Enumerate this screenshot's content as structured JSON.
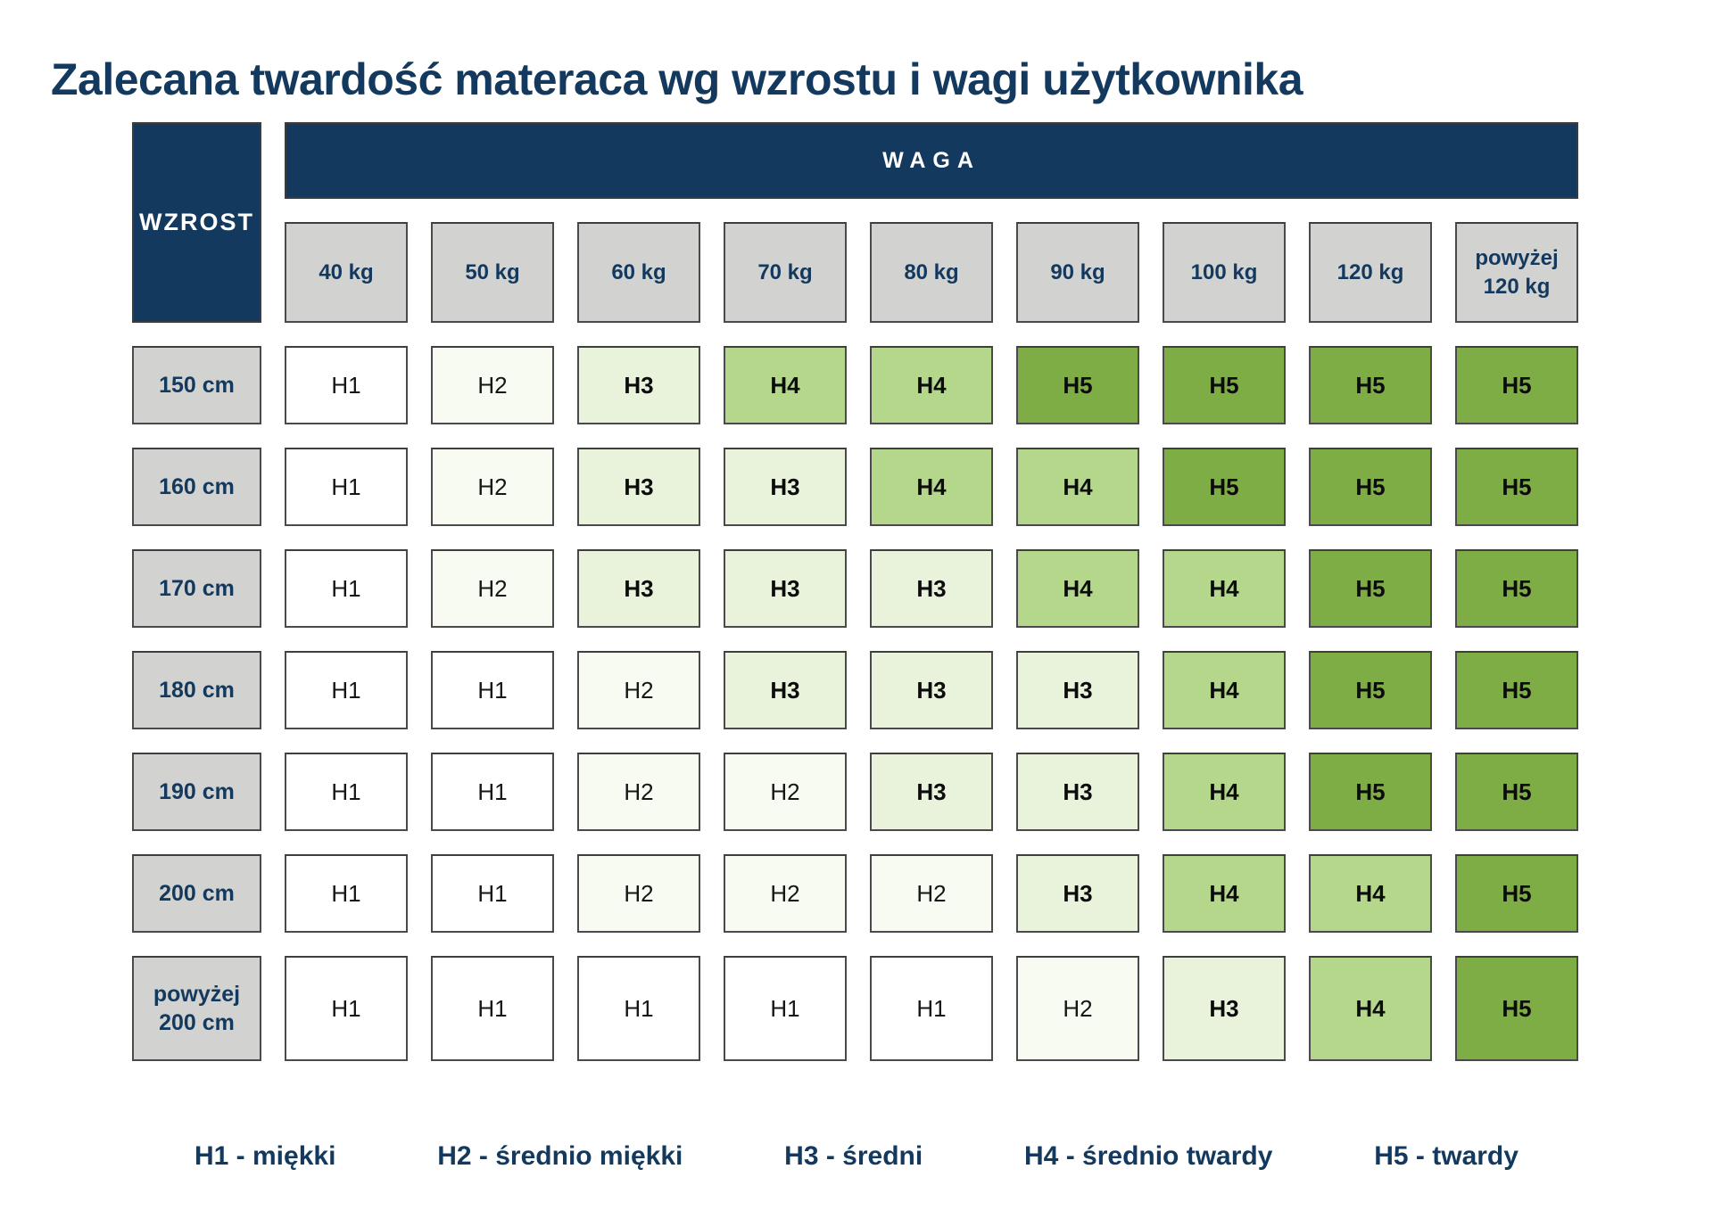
{
  "chart_data": {
    "type": "heatmap",
    "title": "Zalecana twardość materaca wg wzrostu i wagi użytkownika",
    "x_axis_label": "WAGA",
    "y_axis_label": "WZROST",
    "x_categories": [
      "40 kg",
      "50 kg",
      "60 kg",
      "70 kg",
      "80 kg",
      "90 kg",
      "100 kg",
      "120 kg",
      "powyżej 120 kg"
    ],
    "y_categories": [
      "150 cm",
      "160 cm",
      "170 cm",
      "180 cm",
      "190 cm",
      "200 cm",
      "powyżej 200 cm"
    ],
    "values": [
      [
        "H1",
        "H2",
        "H3",
        "H4",
        "H4",
        "H5",
        "H5",
        "H5",
        "H5"
      ],
      [
        "H1",
        "H2",
        "H3",
        "H3",
        "H4",
        "H4",
        "H5",
        "H5",
        "H5"
      ],
      [
        "H1",
        "H2",
        "H3",
        "H3",
        "H3",
        "H4",
        "H4",
        "H5",
        "H5"
      ],
      [
        "H1",
        "H1",
        "H2",
        "H3",
        "H3",
        "H3",
        "H4",
        "H5",
        "H5"
      ],
      [
        "H1",
        "H1",
        "H2",
        "H2",
        "H3",
        "H3",
        "H4",
        "H5",
        "H5"
      ],
      [
        "H1",
        "H1",
        "H2",
        "H2",
        "H2",
        "H3",
        "H4",
        "H4",
        "H5"
      ],
      [
        "H1",
        "H1",
        "H1",
        "H1",
        "H1",
        "H2",
        "H3",
        "H4",
        "H5"
      ]
    ],
    "value_colors": {
      "H1": "#ffffff",
      "H2": "#f7fbf2",
      "H3": "#e9f3dc",
      "H4": "#b4d78c",
      "H5": "#7ead46"
    },
    "bold_values": [
      "H3",
      "H4",
      "H5"
    ],
    "legend": [
      "H1 - miękki",
      "H2 - średnio miękki",
      "H3 - średni",
      "H4 - średnio twardy",
      "H5 - twardy"
    ],
    "legend_position": "bottom",
    "grid": false
  },
  "colors": {
    "navy": "#14395e",
    "header_gray": "#d2d2d0",
    "cell_border": "#4a4a4a",
    "text_dark": "#161616"
  }
}
